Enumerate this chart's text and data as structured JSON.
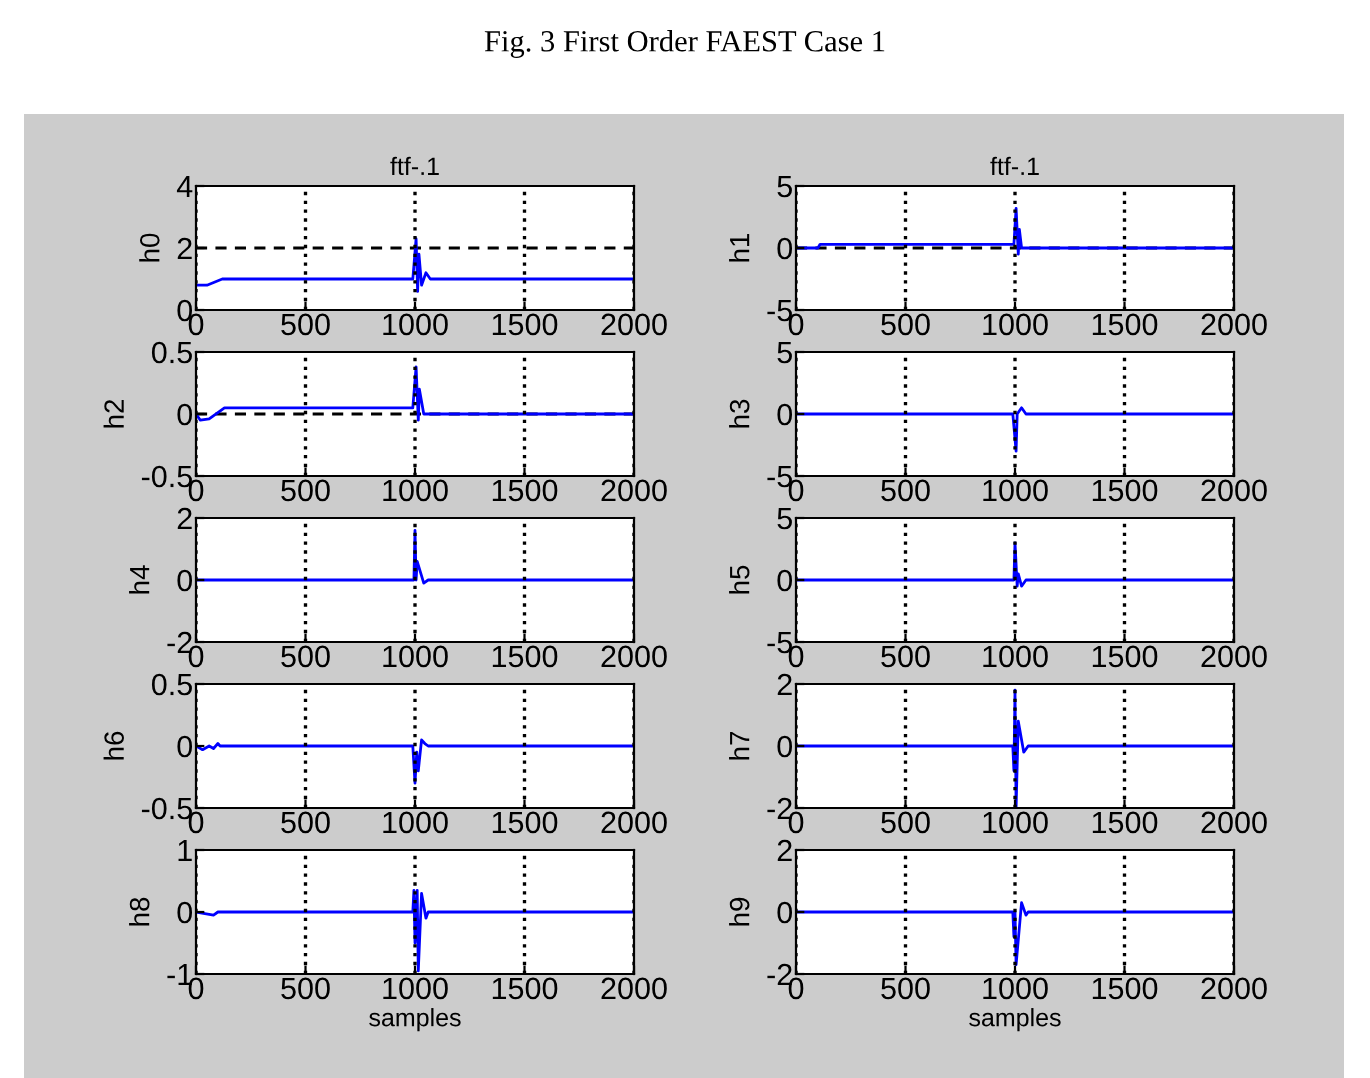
{
  "chart_data": [
    {
      "type": "line",
      "title": "ftf-.1",
      "ylabel": "h0",
      "annotations": [
        "Fig. 3 First Order FAEST Case 1"
      ],
      "xlim": [
        0,
        2000
      ],
      "xticks": [
        0,
        500,
        1000,
        1500,
        2000
      ],
      "ylim": [
        0,
        4
      ],
      "yticks": [
        0,
        2,
        4
      ],
      "grid": "x",
      "ref_lines": [
        {
          "axis": "y",
          "value": 2,
          "color": "#000000",
          "line_style": "dashed"
        }
      ],
      "series": [
        {
          "color": "#0000ff",
          "x": [
            0,
            50,
            120,
            990,
            1005,
            1012,
            1018,
            1030,
            1050,
            1070,
            2000
          ],
          "values": [
            0.8,
            0.8,
            1.0,
            1.0,
            2.3,
            0.6,
            1.8,
            0.8,
            1.2,
            1.0,
            1.0
          ]
        }
      ]
    },
    {
      "type": "line",
      "title": "ftf-.1",
      "ylabel": "h1",
      "xlim": [
        0,
        2000
      ],
      "xticks": [
        0,
        500,
        1000,
        1500,
        2000
      ],
      "ylim": [
        -5,
        5
      ],
      "yticks": [
        -5,
        0,
        5
      ],
      "grid": "x",
      "ref_lines": [
        {
          "axis": "y",
          "value": 0,
          "color": "#000000",
          "line_style": "dashed"
        }
      ],
      "series": [
        {
          "color": "#0000ff",
          "x": [
            0,
            100,
            110,
            995,
            1005,
            1015,
            1020,
            1030,
            2000
          ],
          "values": [
            0,
            0,
            0.3,
            0.3,
            3.2,
            -0.5,
            1.5,
            0,
            0
          ]
        }
      ]
    },
    {
      "type": "line",
      "ylabel": "h2",
      "xlim": [
        0,
        2000
      ],
      "xticks": [
        0,
        500,
        1000,
        1500,
        2000
      ],
      "ylim": [
        -0.5,
        0.5
      ],
      "yticks": [
        -0.5,
        0,
        0.5
      ],
      "grid": "x",
      "ref_lines": [
        {
          "axis": "y",
          "value": 0,
          "color": "#000000",
          "line_style": "dashed"
        }
      ],
      "series": [
        {
          "color": "#0000ff",
          "x": [
            0,
            20,
            60,
            130,
            990,
            1005,
            1015,
            1020,
            1040,
            2000
          ],
          "values": [
            0,
            -0.05,
            -0.04,
            0.05,
            0.05,
            0.38,
            -0.05,
            0.2,
            0,
            0
          ]
        }
      ]
    },
    {
      "type": "line",
      "ylabel": "h3",
      "xlim": [
        0,
        2000
      ],
      "xticks": [
        0,
        500,
        1000,
        1500,
        2000
      ],
      "ylim": [
        -5,
        5
      ],
      "yticks": [
        -5,
        0,
        5
      ],
      "grid": "x",
      "series": [
        {
          "color": "#0000ff",
          "x": [
            0,
            990,
            995,
            1005,
            1010,
            1030,
            1050,
            2000
          ],
          "values": [
            0,
            0,
            -1,
            -3,
            0,
            0.5,
            0,
            0
          ]
        }
      ]
    },
    {
      "type": "line",
      "ylabel": "h4",
      "xlim": [
        0,
        2000
      ],
      "xticks": [
        0,
        500,
        1000,
        1500,
        2000
      ],
      "ylim": [
        -2,
        2
      ],
      "yticks": [
        -2,
        0,
        2
      ],
      "grid": "x",
      "series": [
        {
          "color": "#0000ff",
          "x": [
            0,
            995,
            1000,
            1005,
            1010,
            1040,
            1060,
            2000
          ],
          "values": [
            0,
            0,
            1.6,
            0,
            0.6,
            -0.1,
            0,
            0
          ]
        }
      ]
    },
    {
      "type": "line",
      "ylabel": "h5",
      "xlim": [
        0,
        2000
      ],
      "xticks": [
        0,
        500,
        1000,
        1500,
        2000
      ],
      "ylim": [
        -5,
        5
      ],
      "yticks": [
        -5,
        0,
        5
      ],
      "grid": "x",
      "series": [
        {
          "color": "#0000ff",
          "x": [
            0,
            995,
            1000,
            1010,
            1015,
            1030,
            1050,
            2000
          ],
          "values": [
            0,
            0,
            3,
            -0.5,
            0.5,
            -0.5,
            0,
            0
          ]
        }
      ]
    },
    {
      "type": "line",
      "ylabel": "h6",
      "xlim": [
        0,
        2000
      ],
      "xticks": [
        0,
        500,
        1000,
        1500,
        2000
      ],
      "ylim": [
        -0.5,
        0.5
      ],
      "yticks": [
        -0.5,
        0,
        0.5
      ],
      "grid": "x",
      "series": [
        {
          "color": "#0000ff",
          "x": [
            0,
            30,
            60,
            80,
            100,
            110,
            990,
            1000,
            1008,
            1015,
            1030,
            1045,
            1060,
            2000
          ],
          "values": [
            0,
            -0.03,
            0,
            -0.02,
            0.02,
            0,
            0,
            -0.3,
            -0.05,
            -0.2,
            0.05,
            0.02,
            0,
            0
          ]
        }
      ]
    },
    {
      "type": "line",
      "ylabel": "h7",
      "xlim": [
        0,
        2000
      ],
      "xticks": [
        0,
        500,
        1000,
        1500,
        2000
      ],
      "ylim": [
        -2,
        2
      ],
      "yticks": [
        -2,
        0,
        2
      ],
      "grid": "x",
      "series": [
        {
          "color": "#0000ff",
          "x": [
            0,
            990,
            995,
            1000,
            1005,
            1015,
            1040,
            1060,
            2000
          ],
          "values": [
            0,
            0,
            -0.8,
            1.8,
            -2,
            0.8,
            -0.2,
            0,
            0
          ]
        }
      ]
    },
    {
      "type": "line",
      "ylabel": "h8",
      "xlabel": "samples",
      "xlim": [
        0,
        2000
      ],
      "xticks": [
        0,
        500,
        1000,
        1500,
        2000
      ],
      "ylim": [
        -1,
        1
      ],
      "yticks": [
        -1,
        0,
        1
      ],
      "grid": "x",
      "series": [
        {
          "color": "#0000ff",
          "x": [
            0,
            80,
            100,
            990,
            995,
            1000,
            1010,
            1015,
            1030,
            1050,
            1060,
            2000
          ],
          "values": [
            0,
            -0.05,
            0,
            0,
            0.35,
            -0.5,
            0.35,
            -0.95,
            0.3,
            -0.1,
            0,
            0
          ]
        }
      ]
    },
    {
      "type": "line",
      "ylabel": "h9",
      "xlabel": "samples",
      "xlim": [
        0,
        2000
      ],
      "xticks": [
        0,
        500,
        1000,
        1500,
        2000
      ],
      "ylim": [
        -2,
        2
      ],
      "yticks": [
        -2,
        0,
        2
      ],
      "grid": "x",
      "series": [
        {
          "color": "#0000ff",
          "x": [
            0,
            990,
            995,
            1000,
            1005,
            1030,
            1050,
            1060,
            2000
          ],
          "values": [
            0,
            0,
            -0.8,
            0,
            -1.7,
            0.3,
            -0.1,
            0,
            0
          ]
        }
      ]
    }
  ]
}
